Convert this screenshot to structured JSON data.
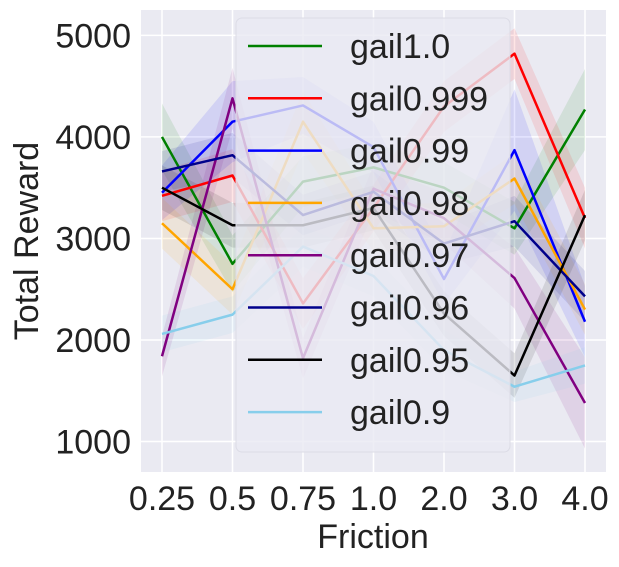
{
  "chart_data": {
    "type": "line",
    "title": "",
    "xlabel": "Friction",
    "ylabel": "Total Reward",
    "categories": [
      "0.25",
      "0.5",
      "0.75",
      "1.0",
      "2.0",
      "3.0",
      "4.0"
    ],
    "ylim": [
      700,
      5250
    ],
    "yticks": [
      1000,
      2000,
      3000,
      4000,
      5000
    ],
    "grid": true,
    "legend_position": "top-center",
    "background": "#eaeaf2",
    "series": [
      {
        "name": "gail1.0",
        "color": "#008000",
        "values": [
          4000,
          2750,
          3560,
          3700,
          3500,
          3100,
          4270
        ],
        "band": [
          330,
          280,
          250,
          230,
          250,
          260,
          400
        ]
      },
      {
        "name": "gail0.999",
        "color": "#ff0000",
        "values": [
          3420,
          3620,
          2360,
          3300,
          4300,
          4820,
          3200
        ],
        "band": [
          250,
          260,
          250,
          230,
          250,
          250,
          300
        ]
      },
      {
        "name": "gail0.99",
        "color": "#0000ff",
        "values": [
          3450,
          4150,
          4310,
          3900,
          2600,
          3870,
          2180
        ],
        "band": [
          270,
          400,
          280,
          250,
          250,
          600,
          350
        ]
      },
      {
        "name": "gail0.98",
        "color": "#ffa500",
        "values": [
          3150,
          2500,
          4150,
          3100,
          3120,
          3590,
          2300
        ],
        "band": [
          250,
          250,
          300,
          230,
          230,
          250,
          250
        ]
      },
      {
        "name": "gail0.97",
        "color": "#800080",
        "values": [
          1840,
          4380,
          1820,
          3490,
          3200,
          2610,
          1380
        ],
        "band": [
          200,
          300,
          200,
          230,
          250,
          300,
          450
        ]
      },
      {
        "name": "gail0.96",
        "color": "#00008b",
        "values": [
          3660,
          3820,
          3230,
          3460,
          2950,
          3170,
          2430
        ],
        "band": [
          200,
          220,
          200,
          200,
          200,
          250,
          250
        ]
      },
      {
        "name": "gail0.95",
        "color": "#000000",
        "values": [
          3500,
          3130,
          3130,
          3300,
          2260,
          1650,
          3230
        ],
        "band": [
          220,
          220,
          220,
          220,
          220,
          220,
          250
        ]
      },
      {
        "name": "gail0.9",
        "color": "#87ceeb",
        "values": [
          2060,
          2250,
          2920,
          2630,
          1900,
          1540,
          1750
        ],
        "band": [
          180,
          180,
          200,
          200,
          200,
          150,
          180
        ]
      }
    ]
  }
}
